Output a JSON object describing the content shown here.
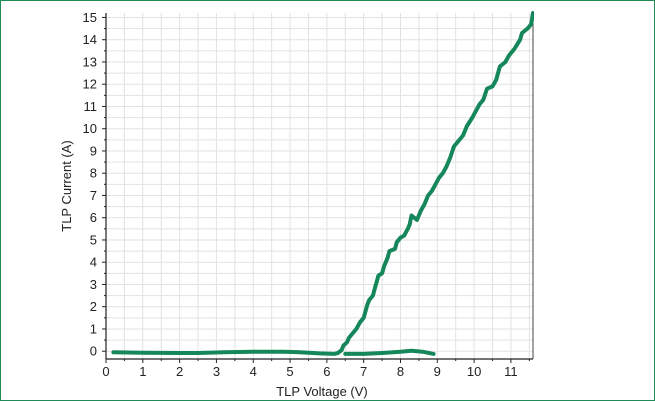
{
  "chart_data": {
    "type": "line",
    "title": "",
    "xlabel": "TLP Voltage (V)",
    "ylabel": "TLP Current (A)",
    "xlim": [
      0,
      11.6
    ],
    "ylim": [
      -0.35,
      15.2
    ],
    "x_ticks": [
      "0",
      "1",
      "2",
      "3",
      "4",
      "5",
      "6",
      "7",
      "8",
      "9",
      "10",
      "11"
    ],
    "y_ticks": [
      "0",
      "1",
      "2",
      "3",
      "4",
      "5",
      "6",
      "7",
      "8",
      "9",
      "10",
      "11",
      "12",
      "13",
      "14",
      "15"
    ],
    "grid": true,
    "legend": "none",
    "line_color": "#15875a",
    "series": [
      {
        "points": [
          [
            0.2,
            -0.05
          ],
          [
            1.0,
            -0.07
          ],
          [
            2.0,
            -0.08
          ],
          [
            2.5,
            -0.08
          ],
          [
            3.2,
            -0.05
          ],
          [
            4.0,
            -0.02
          ],
          [
            4.8,
            -0.02
          ],
          [
            5.2,
            -0.04
          ],
          [
            5.8,
            -0.1
          ],
          [
            6.2,
            -0.12
          ],
          [
            6.3,
            -0.08
          ],
          [
            6.4,
            0.05
          ],
          [
            6.45,
            0.25
          ],
          [
            6.55,
            0.4
          ],
          [
            6.6,
            0.6
          ],
          [
            6.7,
            0.8
          ],
          [
            6.8,
            1.0
          ],
          [
            6.9,
            1.3
          ],
          [
            7.0,
            1.5
          ],
          [
            7.05,
            1.8
          ],
          [
            7.1,
            2.1
          ],
          [
            7.15,
            2.3
          ],
          [
            7.25,
            2.5
          ],
          [
            7.3,
            2.8
          ],
          [
            7.35,
            3.1
          ],
          [
            7.4,
            3.4
          ],
          [
            7.5,
            3.5
          ],
          [
            7.55,
            3.8
          ],
          [
            7.65,
            4.2
          ],
          [
            7.7,
            4.5
          ],
          [
            7.85,
            4.6
          ],
          [
            7.9,
            4.9
          ],
          [
            8.0,
            5.1
          ],
          [
            8.1,
            5.2
          ],
          [
            8.2,
            5.5
          ],
          [
            8.25,
            5.7
          ],
          [
            8.3,
            6.1
          ],
          [
            8.45,
            5.9
          ],
          [
            8.55,
            6.3
          ],
          [
            8.65,
            6.6
          ],
          [
            8.75,
            7.0
          ],
          [
            8.85,
            7.2
          ],
          [
            8.95,
            7.5
          ],
          [
            9.05,
            7.8
          ],
          [
            9.15,
            8.0
          ],
          [
            9.25,
            8.3
          ],
          [
            9.35,
            8.7
          ],
          [
            9.45,
            9.2
          ],
          [
            9.55,
            9.4
          ],
          [
            9.7,
            9.7
          ],
          [
            9.8,
            10.1
          ],
          [
            9.95,
            10.5
          ],
          [
            10.05,
            10.8
          ],
          [
            10.15,
            11.1
          ],
          [
            10.25,
            11.3
          ],
          [
            10.35,
            11.8
          ],
          [
            10.5,
            11.9
          ],
          [
            10.6,
            12.2
          ],
          [
            10.7,
            12.8
          ],
          [
            10.85,
            13.0
          ],
          [
            10.95,
            13.3
          ],
          [
            11.1,
            13.6
          ],
          [
            11.25,
            14.0
          ],
          [
            11.3,
            14.3
          ],
          [
            11.45,
            14.5
          ],
          [
            11.55,
            14.7
          ],
          [
            11.6,
            15.2
          ]
        ]
      },
      {
        "points": [
          [
            6.5,
            -0.12
          ],
          [
            7.0,
            -0.12
          ],
          [
            7.5,
            -0.08
          ],
          [
            8.0,
            -0.02
          ],
          [
            8.3,
            0.02
          ],
          [
            8.6,
            -0.02
          ],
          [
            8.9,
            -0.12
          ]
        ]
      }
    ]
  }
}
